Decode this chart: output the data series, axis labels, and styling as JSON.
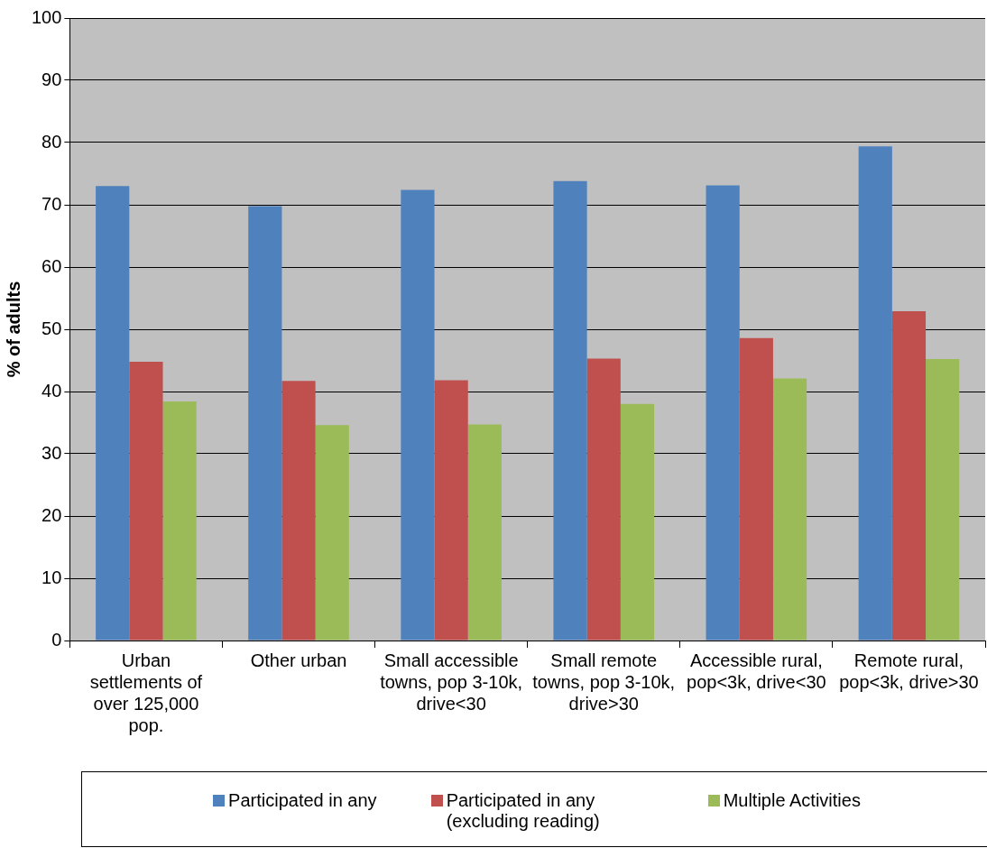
{
  "chart_data": {
    "type": "bar",
    "ylabel": "% of adults",
    "categories": [
      "Urban settlements of over 125,000 pop.",
      "Other urban",
      "Small accessible towns, pop 3-10k, drive<30",
      "Small remote towns, pop 3-10k, drive>30",
      "Accessible rural, pop<3k, drive<30",
      "Remote rural, pop<3k, drive>30"
    ],
    "series": [
      {
        "name": "Participated in any",
        "color": "#4f81bd",
        "values": [
          73.0,
          69.8,
          72.4,
          73.8,
          73.1,
          79.4
        ]
      },
      {
        "name": "Participated in any (excluding reading)",
        "color": "#c0504d",
        "values": [
          44.8,
          41.7,
          41.8,
          45.3,
          48.6,
          52.9
        ]
      },
      {
        "name": "Multiple Activities",
        "color": "#9bbb59",
        "values": [
          38.4,
          34.6,
          34.7,
          38.0,
          42.1,
          45.2
        ]
      }
    ],
    "ylim": [
      0,
      100
    ],
    "yticks": [
      0,
      10,
      20,
      30,
      40,
      50,
      60,
      70,
      80,
      90,
      100
    ],
    "grid": "y",
    "legend": "bottom"
  }
}
